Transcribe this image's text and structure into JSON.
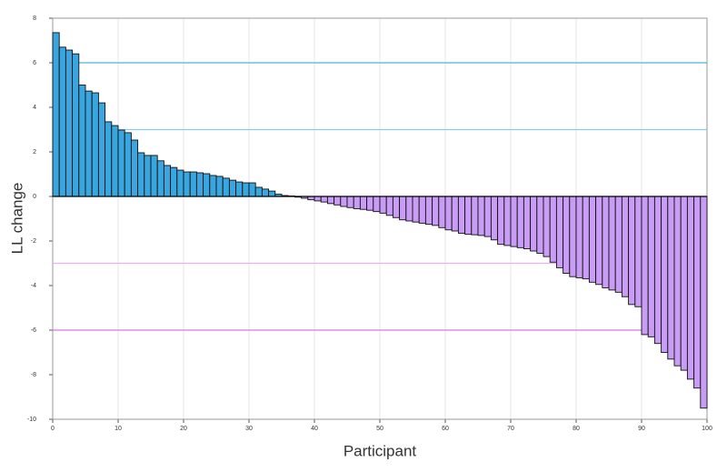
{
  "chart_data": {
    "type": "bar",
    "xlabel": "Participant",
    "ylabel": "LL change",
    "x": [
      1,
      2,
      3,
      4,
      5,
      6,
      7,
      8,
      9,
      10,
      11,
      12,
      13,
      14,
      15,
      16,
      17,
      18,
      19,
      20,
      21,
      22,
      23,
      24,
      25,
      26,
      27,
      28,
      29,
      30,
      31,
      32,
      33,
      34,
      35,
      36,
      37,
      38,
      39,
      40,
      41,
      42,
      43,
      44,
      45,
      46,
      47,
      48,
      49,
      50,
      51,
      52,
      53,
      54,
      55,
      56,
      57,
      58,
      59,
      60,
      61,
      62,
      63,
      64,
      65,
      66,
      67,
      68,
      69,
      70,
      71,
      72,
      73,
      74,
      75,
      76,
      77,
      78,
      79,
      80,
      81,
      82,
      83,
      84,
      85,
      86,
      87,
      88,
      89,
      90,
      91,
      92,
      93,
      94,
      95,
      96,
      97,
      98,
      99,
      100
    ],
    "values": [
      7.35,
      6.7,
      6.57,
      6.4,
      5.0,
      4.73,
      4.65,
      4.2,
      3.35,
      3.18,
      2.98,
      2.86,
      2.53,
      1.96,
      1.84,
      1.84,
      1.6,
      1.39,
      1.3,
      1.18,
      1.1,
      1.1,
      1.06,
      1.02,
      0.94,
      0.9,
      0.82,
      0.73,
      0.65,
      0.61,
      0.61,
      0.41,
      0.33,
      0.24,
      0.1,
      0.04,
      0.02,
      -0.03,
      -0.08,
      -0.15,
      -0.2,
      -0.25,
      -0.32,
      -0.38,
      -0.45,
      -0.5,
      -0.55,
      -0.58,
      -0.62,
      -0.68,
      -0.75,
      -0.85,
      -0.95,
      -1.05,
      -1.1,
      -1.15,
      -1.2,
      -1.25,
      -1.3,
      -1.4,
      -1.5,
      -1.55,
      -1.65,
      -1.7,
      -1.72,
      -1.75,
      -1.8,
      -1.95,
      -2.15,
      -2.2,
      -2.25,
      -2.3,
      -2.35,
      -2.45,
      -2.55,
      -2.7,
      -2.95,
      -3.2,
      -3.45,
      -3.6,
      -3.65,
      -3.7,
      -3.85,
      -3.95,
      -4.1,
      -4.2,
      -4.3,
      -4.5,
      -4.85,
      -4.95,
      -6.2,
      -6.3,
      -6.6,
      -7.0,
      -7.3,
      -7.6,
      -7.8,
      -8.2,
      -8.6,
      -9.5
    ],
    "positive_color": "#3aa6e0",
    "negative_color": "#c99cf5",
    "reference_lines": [
      {
        "value": 6,
        "color": "#4fb3dc"
      },
      {
        "value": 3,
        "color": "#8ccbe6"
      },
      {
        "value": -3,
        "color": "#eab0ea"
      },
      {
        "value": -6,
        "color": "#d27ce0"
      }
    ],
    "xlim": [
      0,
      100
    ],
    "xticks": [
      0,
      10,
      20,
      30,
      40,
      50,
      60,
      70,
      80,
      90,
      100
    ],
    "ylim": [
      -10,
      8
    ],
    "yticks": [
      -10,
      -8,
      -6,
      -4,
      -2,
      0,
      2,
      4,
      6,
      8
    ],
    "grid": true
  }
}
